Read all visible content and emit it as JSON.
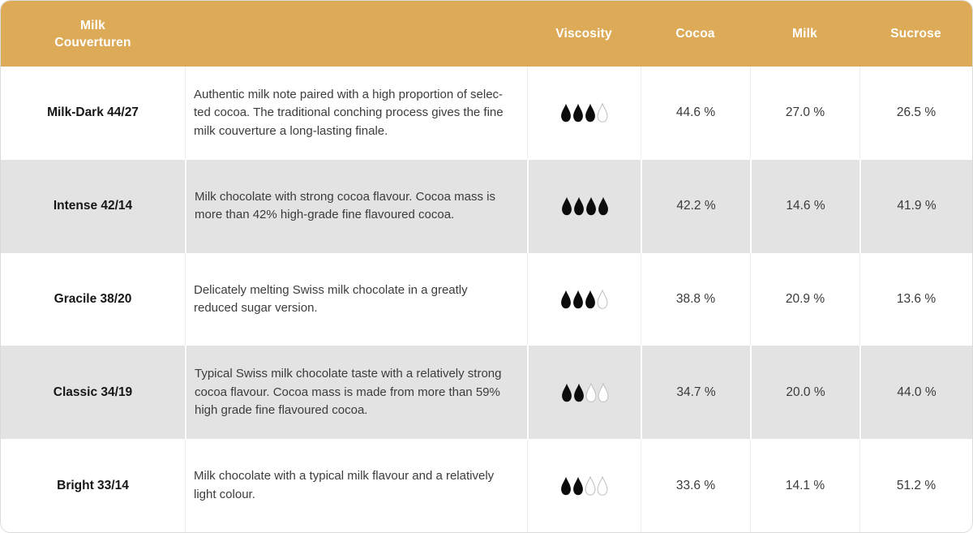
{
  "table": {
    "header": {
      "title_lines": [
        "Milk",
        "Couverturen"
      ],
      "columns": [
        "Viscosity",
        "Cocoa",
        "Milk",
        "Sucrose"
      ]
    },
    "viscosity_scale_max": 4,
    "rows": [
      {
        "name": "Milk-Dark 44/27",
        "description_lines": [
          "Authentic milk note paired with a high proportion of selec-",
          "ted cocoa. The traditional conching process gives the fine",
          "milk couverture a long-lasting finale."
        ],
        "viscosity": 3,
        "cocoa": "44.6 %",
        "milk": "27.0 %",
        "sucrose": "26.5 %"
      },
      {
        "name": "Intense 42/14",
        "description_lines": [
          "Milk chocolate with strong cocoa flavour. Cocoa mass is",
          "more than 42% high-grade fine flavoured cocoa."
        ],
        "viscosity": 4,
        "cocoa": "42.2 %",
        "milk": "14.6 %",
        "sucrose": "41.9 %"
      },
      {
        "name": "Gracile 38/20",
        "description_lines": [
          "Delicately melting Swiss milk chocolate in a greatly",
          "reduced sugar version."
        ],
        "viscosity": 3,
        "cocoa": "38.8 %",
        "milk": "20.9 %",
        "sucrose": "13.6 %"
      },
      {
        "name": "Classic 34/19",
        "description_lines": [
          "Typical Swiss milk chocolate taste with a relatively strong",
          "cocoa flavour. Cocoa mass is made from more than 59%",
          "high grade fine flavoured cocoa."
        ],
        "viscosity": 2,
        "cocoa": "34.7 %",
        "milk": "20.0 %",
        "sucrose": "44.0 %"
      },
      {
        "name": "Bright 33/14",
        "description_lines": [
          "Milk chocolate with a typical milk flavour and a relatively",
          "light colour."
        ],
        "viscosity": 2,
        "cocoa": "33.6 %",
        "milk": "14.1 %",
        "sucrose": "51.2 %"
      }
    ]
  },
  "colors": {
    "header_bg": "#DDAB58",
    "shaded_row_bg": "#E3E3E3",
    "card_border": "#DBDBDB",
    "light_separator": "#EDEDED",
    "drop_fill": "#0C0C0C",
    "drop_empty_stroke": "#BDBDBD"
  }
}
